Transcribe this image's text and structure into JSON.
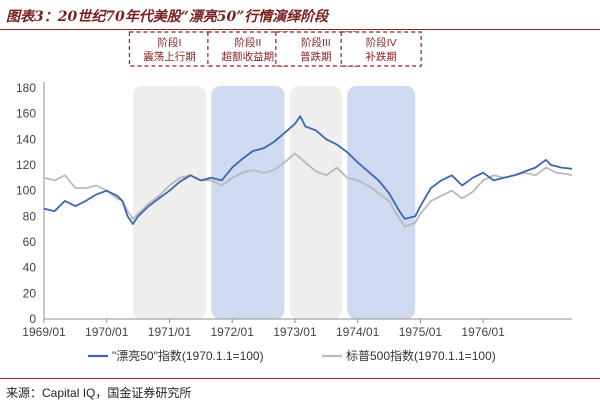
{
  "title": "图表3：20世纪70年代美股“漂亮50”行情演绎阶段",
  "source": "来源：Capital IQ，国金证券研究所",
  "colors": {
    "nifty": "#3a68b3",
    "sp500": "#b9b9b9",
    "phase_gray": "#eeeeee",
    "phase_blue": "#cfdaf0",
    "phase_label": "#8b2323"
  },
  "chart_data": {
    "type": "line",
    "ylim": [
      0,
      180
    ],
    "yticks": [
      "0",
      "20",
      "40",
      "60",
      "80",
      "100",
      "120",
      "140",
      "160",
      "180"
    ],
    "xlim": [
      "1969-01",
      "1977-06"
    ],
    "xticks": [
      "1969/01",
      "1970/01",
      "1971/01",
      "1972/01",
      "1973/01",
      "1974/01",
      "1975/01",
      "1976/01"
    ],
    "grid": false,
    "legend": "bottom",
    "phases": [
      {
        "label_line1": "阶段I",
        "label_line2": "震荡上行期",
        "start": "1970-06",
        "end": "1971-08",
        "color": "gray"
      },
      {
        "label_line1": "阶段II",
        "label_line2": "超额收益期",
        "start": "1971-09",
        "end": "1972-11",
        "color": "blue"
      },
      {
        "label_line1": "阶段III",
        "label_line2": "普跌期",
        "start": "1972-12",
        "end": "1973-10",
        "color": "gray"
      },
      {
        "label_line1": "阶段IV",
        "label_line2": "补跌期",
        "start": "1973-11",
        "end": "1974-12",
        "color": "blue"
      }
    ],
    "series": [
      {
        "name": "\"漂亮50\"指数(1970.1.1=100)",
        "points": [
          [
            "1969-01",
            86
          ],
          [
            "1969-03",
            84
          ],
          [
            "1969-05",
            92
          ],
          [
            "1969-07",
            88
          ],
          [
            "1969-09",
            92
          ],
          [
            "1969-11",
            97
          ],
          [
            "1970-01",
            100
          ],
          [
            "1970-03",
            96
          ],
          [
            "1970-04",
            92
          ],
          [
            "1970-05",
            80
          ],
          [
            "1970-06",
            74
          ],
          [
            "1970-07",
            80
          ],
          [
            "1970-09",
            88
          ],
          [
            "1970-11",
            94
          ],
          [
            "1971-01",
            100
          ],
          [
            "1971-03",
            107
          ],
          [
            "1971-05",
            112
          ],
          [
            "1971-07",
            108
          ],
          [
            "1971-09",
            110
          ],
          [
            "1971-11",
            108
          ],
          [
            "1972-01",
            118
          ],
          [
            "1972-03",
            125
          ],
          [
            "1972-05",
            131
          ],
          [
            "1972-07",
            133
          ],
          [
            "1972-09",
            138
          ],
          [
            "1972-11",
            145
          ],
          [
            "1973-01",
            152
          ],
          [
            "1973-02",
            158
          ],
          [
            "1973-03",
            150
          ],
          [
            "1973-05",
            147
          ],
          [
            "1973-07",
            140
          ],
          [
            "1973-09",
            136
          ],
          [
            "1973-11",
            130
          ],
          [
            "1974-01",
            122
          ],
          [
            "1974-03",
            115
          ],
          [
            "1974-05",
            108
          ],
          [
            "1974-07",
            98
          ],
          [
            "1974-09",
            84
          ],
          [
            "1974-10",
            78
          ],
          [
            "1974-12",
            80
          ],
          [
            "1975-01",
            88
          ],
          [
            "1975-03",
            102
          ],
          [
            "1975-05",
            108
          ],
          [
            "1975-07",
            112
          ],
          [
            "1975-09",
            104
          ],
          [
            "1975-11",
            110
          ],
          [
            "1976-01",
            114
          ],
          [
            "1976-03",
            108
          ],
          [
            "1976-05",
            110
          ],
          [
            "1976-07",
            112
          ],
          [
            "1976-09",
            115
          ],
          [
            "1976-11",
            118
          ],
          [
            "1977-01",
            124
          ],
          [
            "1977-02",
            120
          ],
          [
            "1977-04",
            118
          ],
          [
            "1977-06",
            117
          ]
        ]
      },
      {
        "name": "标普500指数(1970.1.1=100)",
        "points": [
          [
            "1969-01",
            110
          ],
          [
            "1969-03",
            108
          ],
          [
            "1969-05",
            112
          ],
          [
            "1969-07",
            102
          ],
          [
            "1969-09",
            102
          ],
          [
            "1969-11",
            104
          ],
          [
            "1970-01",
            100
          ],
          [
            "1970-03",
            94
          ],
          [
            "1970-04",
            92
          ],
          [
            "1970-05",
            84
          ],
          [
            "1970-06",
            78
          ],
          [
            "1970-07",
            82
          ],
          [
            "1970-09",
            90
          ],
          [
            "1970-11",
            96
          ],
          [
            "1971-01",
            104
          ],
          [
            "1971-03",
            110
          ],
          [
            "1971-05",
            112
          ],
          [
            "1971-07",
            108
          ],
          [
            "1971-09",
            108
          ],
          [
            "1971-11",
            104
          ],
          [
            "1972-01",
            110
          ],
          [
            "1972-03",
            114
          ],
          [
            "1972-05",
            116
          ],
          [
            "1972-07",
            114
          ],
          [
            "1972-09",
            116
          ],
          [
            "1972-11",
            122
          ],
          [
            "1973-01",
            129
          ],
          [
            "1973-03",
            122
          ],
          [
            "1973-05",
            115
          ],
          [
            "1973-07",
            112
          ],
          [
            "1973-09",
            118
          ],
          [
            "1973-11",
            110
          ],
          [
            "1974-01",
            108
          ],
          [
            "1974-03",
            104
          ],
          [
            "1974-05",
            98
          ],
          [
            "1974-07",
            92
          ],
          [
            "1974-09",
            78
          ],
          [
            "1974-10",
            72
          ],
          [
            "1974-12",
            75
          ],
          [
            "1975-01",
            82
          ],
          [
            "1975-03",
            92
          ],
          [
            "1975-05",
            96
          ],
          [
            "1975-07",
            100
          ],
          [
            "1975-09",
            94
          ],
          [
            "1975-11",
            99
          ],
          [
            "1976-01",
            108
          ],
          [
            "1976-03",
            112
          ],
          [
            "1976-05",
            110
          ],
          [
            "1976-07",
            112
          ],
          [
            "1976-09",
            114
          ],
          [
            "1976-11",
            112
          ],
          [
            "1977-01",
            118
          ],
          [
            "1977-03",
            114
          ],
          [
            "1977-05",
            113
          ],
          [
            "1977-06",
            112
          ]
        ]
      }
    ]
  }
}
